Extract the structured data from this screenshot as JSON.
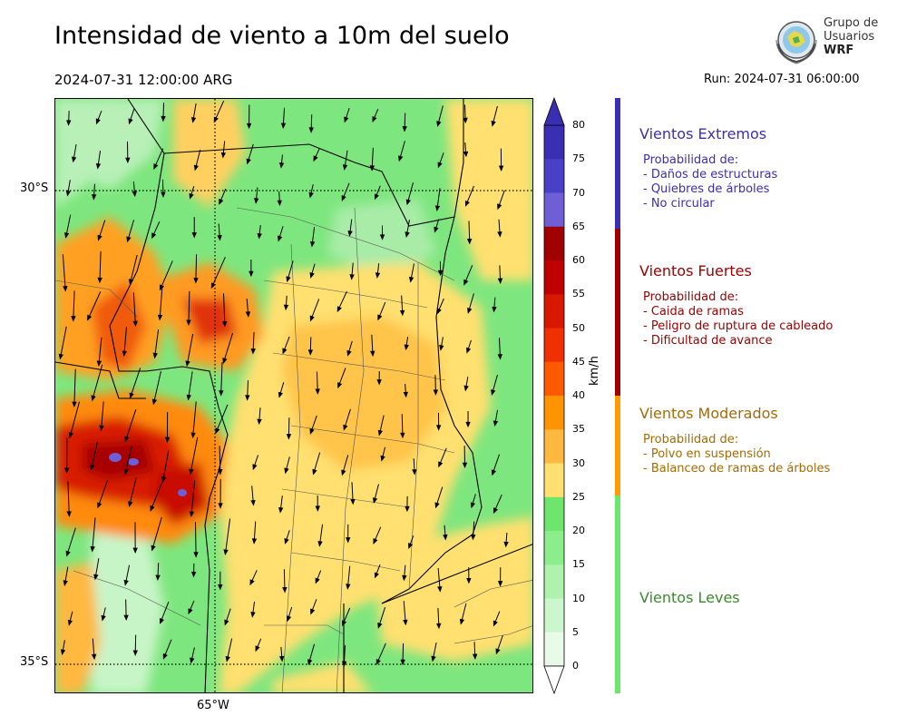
{
  "header": {
    "title": "Intensidad de viento a 10m del suelo",
    "valid_time": "2024-07-31 12:00:00 ARG",
    "run": "Run: 2024-07-31 06:00:00"
  },
  "logo": {
    "line1": "Grupo de",
    "line2": "Usuarios",
    "line3": "WRF"
  },
  "map": {
    "lat_ticks": [
      "30°S",
      "35°S"
    ],
    "lon_ticks": [
      "65°W"
    ]
  },
  "colorbar": {
    "unit": "km/h",
    "ticks": [
      "80",
      "75",
      "70",
      "65",
      "60",
      "55",
      "50",
      "45",
      "40",
      "35",
      "30",
      "25",
      "20",
      "15",
      "10",
      "5",
      "0"
    ],
    "colors": [
      "#3a2fb3",
      "#4a3fc8",
      "#6e5fd6",
      "#a00000",
      "#c00000",
      "#d81800",
      "#f03000",
      "#ff5a00",
      "#ff9400",
      "#ffb840",
      "#ffe070",
      "#6ee66e",
      "#8ced8c",
      "#aef2ae",
      "#ccf6cc",
      "#e8fbe8"
    ]
  },
  "categories": [
    {
      "title": "Vientos Extremos",
      "color": "#3a2fb3",
      "heading": "Probabilidad de:",
      "items": [
        "- Daños de estructuras",
        "- Quiebres de árboles",
        "- No circular"
      ]
    },
    {
      "title": "Vientos Fuertes",
      "color": "#9a0000",
      "heading": "Probabilidad de:",
      "items": [
        "- Caida de ramas",
        "- Peligro de ruptura de cableado",
        "- Dificultad de avance"
      ]
    },
    {
      "title": "Vientos Moderados",
      "color": "#a86a00",
      "heading": "Probabilidad de:",
      "items": [
        "- Polvo en suspensión",
        "- Balanceo de ramas de árboles"
      ]
    },
    {
      "title": "Vientos Leves",
      "color": "#3a8a2a",
      "heading": "",
      "items": []
    }
  ],
  "level_bar_colors": [
    "#3a2fb3",
    "#a00000",
    "#ff9a00",
    "#6ee66e"
  ]
}
